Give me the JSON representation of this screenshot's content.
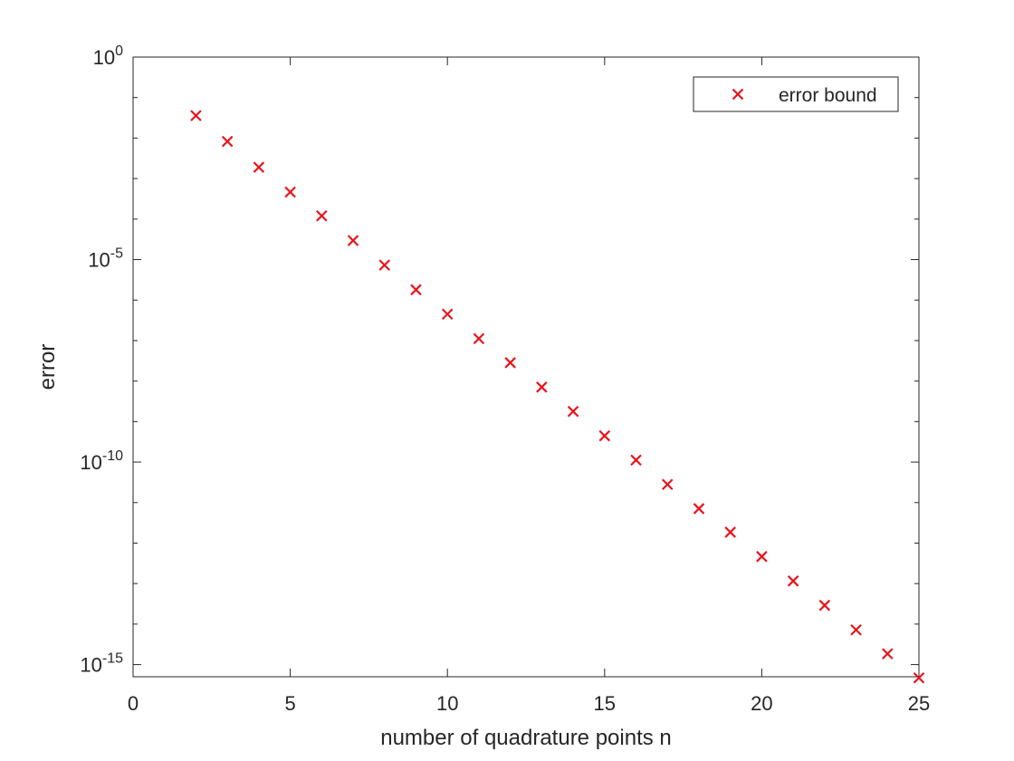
{
  "chart_data": {
    "type": "scatter",
    "xlabel": "number of quadrature points n",
    "ylabel": "error",
    "xlim": [
      0,
      25
    ],
    "ylim": [
      -15.3,
      0
    ],
    "y_scale": "log",
    "x_ticks": [
      0,
      5,
      10,
      15,
      20,
      25
    ],
    "y_ticks": [
      {
        "exponent": 0,
        "base": "10",
        "sup": "0"
      },
      {
        "exponent": -5,
        "base": "10",
        "sup": "-5"
      },
      {
        "exponent": -10,
        "base": "10",
        "sup": "-10"
      },
      {
        "exponent": -15,
        "base": "10",
        "sup": "-15"
      }
    ],
    "grid": false,
    "legend_position": "top-right",
    "marker": "x",
    "color": "#e8141c",
    "series": [
      {
        "name": "error bound",
        "x": [
          2,
          3,
          4,
          5,
          6,
          7,
          8,
          9,
          10,
          11,
          12,
          13,
          14,
          15,
          16,
          17,
          18,
          19,
          20,
          21,
          22,
          23,
          24,
          25
        ],
        "y": [
          0.0358,
          0.00825,
          0.0019,
          0.000465,
          0.00012,
          2.95e-05,
          7.3e-06,
          1.8e-06,
          4.5e-07,
          1.12e-07,
          2.85e-08,
          7.1e-09,
          1.78e-09,
          4.45e-10,
          1.12e-10,
          2.8e-11,
          7.1e-12,
          1.86e-12,
          4.65e-13,
          1.16e-13,
          2.9e-14,
          7.2e-15,
          1.85e-15,
          4.7e-16
        ]
      }
    ]
  }
}
